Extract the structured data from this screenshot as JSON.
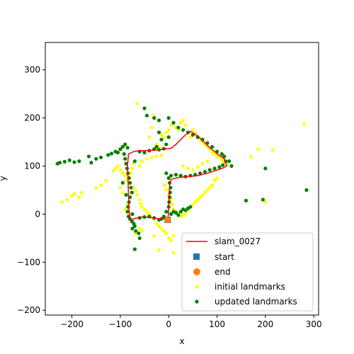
{
  "chart_data": {
    "type": "scatter",
    "title": "",
    "xlabel": "x",
    "ylabel": "y",
    "xlim": [
      -255,
      310
    ],
    "ylim": [
      -210,
      357
    ],
    "xticks": [
      -200,
      -100,
      0,
      100,
      200,
      300
    ],
    "yticks": [
      -200,
      -100,
      0,
      100,
      200,
      300
    ],
    "grid": false,
    "legend_position": "lower-right",
    "trajectory": {
      "name": "slam_0027",
      "color": "#ff0000",
      "points": [
        [
          -2,
          -12
        ],
        [
          -10,
          -10
        ],
        [
          -25,
          -9
        ],
        [
          -40,
          -7
        ],
        [
          -55,
          -6
        ],
        [
          -70,
          -9
        ],
        [
          -79,
          -13
        ],
        [
          -82,
          10
        ],
        [
          -83,
          40
        ],
        [
          -84,
          70
        ],
        [
          -85,
          100
        ],
        [
          -83,
          125
        ],
        [
          -70,
          131
        ],
        [
          -50,
          132
        ],
        [
          -30,
          133
        ],
        [
          -10,
          135
        ],
        [
          5,
          137
        ],
        [
          15,
          145
        ],
        [
          25,
          155
        ],
        [
          35,
          165
        ],
        [
          45,
          172
        ],
        [
          55,
          166
        ],
        [
          65,
          158
        ],
        [
          75,
          148
        ],
        [
          85,
          138
        ],
        [
          95,
          130
        ],
        [
          105,
          122
        ],
        [
          115,
          115
        ],
        [
          120,
          100
        ],
        [
          110,
          95
        ],
        [
          95,
          90
        ],
        [
          80,
          85
        ],
        [
          60,
          80
        ],
        [
          40,
          78
        ],
        [
          20,
          76
        ],
        [
          5,
          72
        ],
        [
          2,
          60
        ],
        [
          1,
          40
        ],
        [
          0,
          20
        ],
        [
          0,
          5
        ],
        [
          -2,
          -12
        ]
      ]
    },
    "start": {
      "name": "start",
      "color": "#1f77b4",
      "point": [
        -2,
        -12
      ]
    },
    "end": {
      "name": "end",
      "color": "#ff7f0e",
      "point": [
        -2,
        -12
      ]
    },
    "initial_landmarks": {
      "name": "initial landmarks",
      "color": "#ffff00",
      "points": [
        [
          -220,
          25
        ],
        [
          -210,
          30
        ],
        [
          -200,
          38
        ],
        [
          -195,
          42
        ],
        [
          -185,
          35
        ],
        [
          -180,
          45
        ],
        [
          -150,
          55
        ],
        [
          -140,
          60
        ],
        [
          -130,
          70
        ],
        [
          -115,
          90
        ],
        [
          -110,
          95
        ],
        [
          -105,
          100
        ],
        [
          -100,
          92
        ],
        [
          -95,
          85
        ],
        [
          -90,
          80
        ],
        [
          -88,
          70
        ],
        [
          -72,
          55
        ],
        [
          -68,
          48
        ],
        [
          -65,
          40
        ],
        [
          -60,
          30
        ],
        [
          -58,
          22
        ],
        [
          -55,
          15
        ],
        [
          -50,
          10
        ],
        [
          -45,
          5
        ],
        [
          -40,
          0
        ],
        [
          -38,
          -5
        ],
        [
          -30,
          -10
        ],
        [
          -25,
          -20
        ],
        [
          -20,
          -25
        ],
        [
          -15,
          -30
        ],
        [
          -10,
          -35
        ],
        [
          -5,
          -40
        ],
        [
          0,
          -50
        ],
        [
          5,
          -55
        ],
        [
          10,
          -45
        ],
        [
          -60,
          -30
        ],
        [
          -55,
          -35
        ],
        [
          -70,
          -40
        ],
        [
          -30,
          -45
        ],
        [
          10,
          -80
        ],
        [
          -20,
          -75
        ],
        [
          -65,
          230
        ],
        [
          -40,
          160
        ],
        [
          -35,
          180
        ],
        [
          -30,
          205
        ],
        [
          -25,
          145
        ],
        [
          -20,
          140
        ],
        [
          -15,
          165
        ],
        [
          -10,
          160
        ],
        [
          -5,
          170
        ],
        [
          0,
          175
        ],
        [
          5,
          185
        ],
        [
          10,
          190
        ],
        [
          15,
          180
        ],
        [
          20,
          175
        ],
        [
          25,
          190
        ],
        [
          30,
          195
        ],
        [
          35,
          185
        ],
        [
          40,
          170
        ],
        [
          45,
          160
        ],
        [
          50,
          175
        ],
        [
          55,
          168
        ],
        [
          60,
          162
        ],
        [
          65,
          155
        ],
        [
          70,
          150
        ],
        [
          75,
          145
        ],
        [
          80,
          140
        ],
        [
          85,
          135
        ],
        [
          90,
          128
        ],
        [
          95,
          125
        ],
        [
          100,
          120
        ],
        [
          105,
          118
        ],
        [
          110,
          112
        ],
        [
          115,
          108
        ],
        [
          120,
          105
        ],
        [
          -8,
          60
        ],
        [
          -5,
          50
        ],
        [
          0,
          40
        ],
        [
          5,
          30
        ],
        [
          8,
          20
        ],
        [
          10,
          10
        ],
        [
          15,
          5
        ],
        [
          20,
          0
        ],
        [
          25,
          -5
        ],
        [
          30,
          -2
        ],
        [
          35,
          0
        ],
        [
          40,
          8
        ],
        [
          45,
          15
        ],
        [
          50,
          20
        ],
        [
          55,
          25
        ],
        [
          60,
          30
        ],
        [
          65,
          35
        ],
        [
          70,
          40
        ],
        [
          75,
          45
        ],
        [
          80,
          50
        ],
        [
          85,
          55
        ],
        [
          90,
          60
        ],
        [
          95,
          70
        ],
        [
          100,
          75
        ],
        [
          -60,
          100
        ],
        [
          -55,
          110
        ],
        [
          -45,
          115
        ],
        [
          -35,
          118
        ],
        [
          -25,
          120
        ],
        [
          -15,
          122
        ],
        [
          30,
          100
        ],
        [
          40,
          95
        ],
        [
          50,
          92
        ],
        [
          60,
          98
        ],
        [
          70,
          105
        ],
        [
          80,
          110
        ],
        [
          170,
          120
        ],
        [
          185,
          135
        ],
        [
          200,
          25
        ],
        [
          215,
          133
        ],
        [
          280,
          187
        ],
        [
          -90,
          10
        ],
        [
          -85,
          20
        ],
        [
          -95,
          45
        ],
        [
          -100,
          55
        ],
        [
          -80,
          75
        ],
        [
          -78,
          85
        ],
        [
          -75,
          95
        ],
        [
          -73,
          105
        ]
      ]
    },
    "updated_landmarks": {
      "name": "updated landmarks",
      "color": "#008000",
      "points": [
        [
          -230,
          105
        ],
        [
          -225,
          107
        ],
        [
          -215,
          109
        ],
        [
          -205,
          112
        ],
        [
          -195,
          108
        ],
        [
          -185,
          110
        ],
        [
          -165,
          120
        ],
        [
          -160,
          107
        ],
        [
          -150,
          115
        ],
        [
          -140,
          118
        ],
        [
          -125,
          123
        ],
        [
          -118,
          126
        ],
        [
          -110,
          130
        ],
        [
          -105,
          128
        ],
        [
          -100,
          135
        ],
        [
          -95,
          140
        ],
        [
          -90,
          145
        ],
        [
          -85,
          138
        ],
        [
          -92,
          125
        ],
        [
          -90,
          115
        ],
        [
          -88,
          105
        ],
        [
          -86,
          95
        ],
        [
          -84,
          85
        ],
        [
          -82,
          75
        ],
        [
          -80,
          65
        ],
        [
          -78,
          55
        ],
        [
          -76,
          45
        ],
        [
          -80,
          35
        ],
        [
          -82,
          25
        ],
        [
          -84,
          15
        ],
        [
          -85,
          5
        ],
        [
          -83,
          -5
        ],
        [
          -80,
          -10
        ],
        [
          -76,
          -15
        ],
        [
          -72,
          -20
        ],
        [
          -70,
          -25
        ],
        [
          -75,
          -30
        ],
        [
          -68,
          -35
        ],
        [
          -62,
          -40
        ],
        [
          -70,
          -73
        ],
        [
          -60,
          -50
        ],
        [
          -60,
          130
        ],
        [
          -50,
          128
        ],
        [
          -40,
          132
        ],
        [
          -30,
          135
        ],
        [
          -20,
          134
        ],
        [
          -10,
          136
        ],
        [
          -50,
          220
        ],
        [
          -45,
          205
        ],
        [
          -30,
          200
        ],
        [
          -20,
          195
        ],
        [
          0,
          200
        ],
        [
          10,
          190
        ],
        [
          20,
          180
        ],
        [
          30,
          175
        ],
        [
          40,
          170
        ],
        [
          50,
          165
        ],
        [
          60,
          160
        ],
        [
          70,
          155
        ],
        [
          80,
          148
        ],
        [
          90,
          140
        ],
        [
          100,
          130
        ],
        [
          110,
          125
        ],
        [
          115,
          120
        ],
        [
          118,
          110
        ],
        [
          112,
          102
        ],
        [
          105,
          98
        ],
        [
          95,
          95
        ],
        [
          85,
          92
        ],
        [
          75,
          88
        ],
        [
          65,
          85
        ],
        [
          55,
          82
        ],
        [
          45,
          80
        ],
        [
          35,
          78
        ],
        [
          25,
          80
        ],
        [
          15,
          82
        ],
        [
          5,
          80
        ],
        [
          -5,
          85
        ],
        [
          0,
          75
        ],
        [
          2,
          65
        ],
        [
          4,
          55
        ],
        [
          3,
          45
        ],
        [
          2,
          35
        ],
        [
          1,
          25
        ],
        [
          0,
          15
        ],
        [
          -5,
          5
        ],
        [
          -10,
          -5
        ],
        [
          -15,
          -10
        ],
        [
          -20,
          -12
        ],
        [
          -30,
          -8
        ],
        [
          -40,
          -5
        ],
        [
          -50,
          -6
        ],
        [
          -60,
          -8
        ],
        [
          5,
          0
        ],
        [
          10,
          5
        ],
        [
          15,
          3
        ],
        [
          20,
          -2
        ],
        [
          25,
          5
        ],
        [
          30,
          10
        ],
        [
          35,
          8
        ],
        [
          40,
          12
        ],
        [
          45,
          15
        ],
        [
          -20,
          170
        ],
        [
          -15,
          155
        ],
        [
          0,
          160
        ],
        [
          -5,
          145
        ],
        [
          -25,
          140
        ],
        [
          130,
          100
        ],
        [
          125,
          110
        ],
        [
          160,
          28
        ],
        [
          200,
          95
        ],
        [
          195,
          30
        ],
        [
          285,
          50
        ],
        [
          -75,
          0
        ],
        [
          -95,
          65
        ],
        [
          -70,
          110
        ],
        [
          -88,
          40
        ]
      ]
    }
  }
}
